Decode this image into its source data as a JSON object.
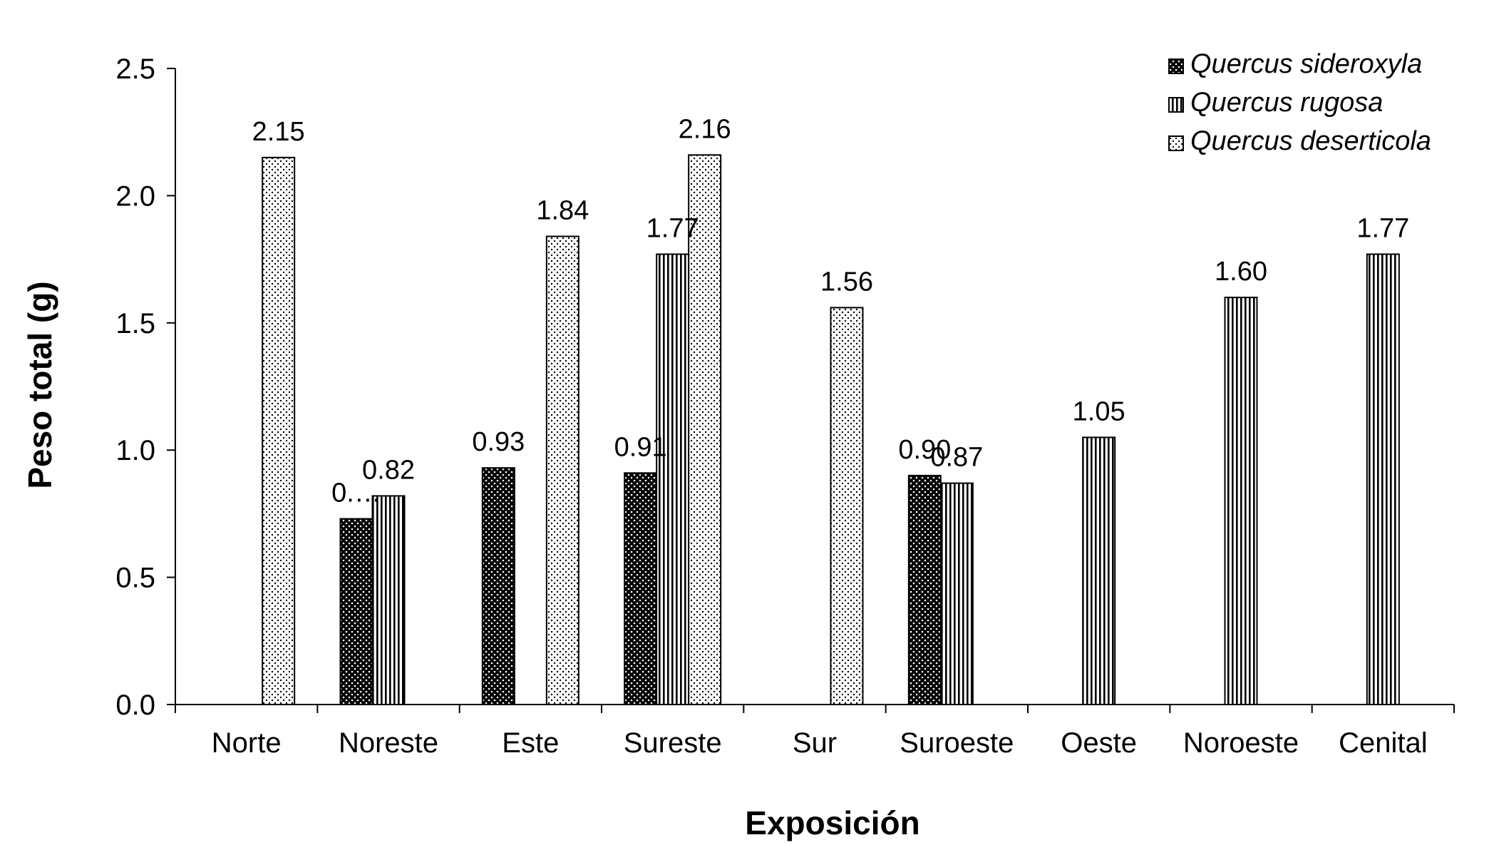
{
  "chart_data": {
    "type": "bar",
    "title": "",
    "xlabel": "Exposición",
    "ylabel": "Peso total (g)",
    "ylim": [
      0,
      2.5
    ],
    "yticks": [
      "0.0",
      "0.5",
      "1.0",
      "1.5",
      "2.0",
      "2.5"
    ],
    "categories": [
      "Norte",
      "Noreste",
      "Este",
      "Sureste",
      "Sur",
      "Suroeste",
      "Oeste",
      "Noroeste",
      "Cenital"
    ],
    "legend_position": "top-right",
    "series": [
      {
        "name": "Quercus sideroxyla",
        "pattern": "dark-dots",
        "values": [
          null,
          0.73,
          0.93,
          0.91,
          null,
          0.9,
          null,
          null,
          null
        ],
        "labels": [
          null,
          "0.…",
          "0.93",
          "0.91",
          null,
          "0.90",
          null,
          null,
          null
        ]
      },
      {
        "name": "Quercus rugosa",
        "pattern": "vertical-stripes",
        "values": [
          null,
          0.82,
          null,
          1.77,
          null,
          0.87,
          1.05,
          1.6,
          1.77
        ],
        "labels": [
          null,
          "0.82",
          null,
          "1.77",
          null,
          "0.87",
          "1.05",
          "1.60",
          "1.77"
        ]
      },
      {
        "name": "Quercus deserticola",
        "pattern": "light-dots",
        "values": [
          2.15,
          null,
          1.84,
          2.16,
          1.56,
          null,
          null,
          null,
          null
        ],
        "labels": [
          "2.15",
          null,
          "1.84",
          "2.16",
          "1.56",
          null,
          null,
          null,
          null
        ]
      }
    ]
  }
}
